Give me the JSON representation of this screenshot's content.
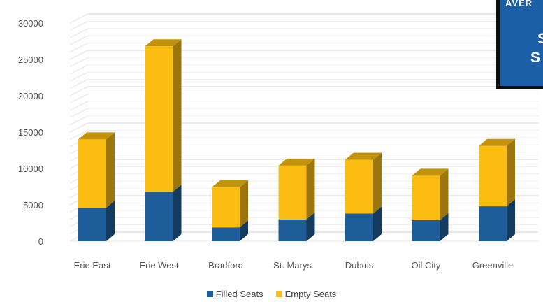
{
  "chart_data": {
    "type": "bar",
    "stacked": true,
    "three_d": true,
    "categories": [
      "Erie East",
      "Erie West",
      "Bradford",
      "St. Marys",
      "Dubois",
      "Oil City",
      "Greenville"
    ],
    "series": [
      {
        "name": "Filled Seats",
        "color": "#1f5d9a",
        "values": [
          4600,
          6800,
          1900,
          3000,
          3800,
          2900,
          4800
        ]
      },
      {
        "name": "Empty Seats",
        "color": "#fbbd12",
        "values": [
          9400,
          20000,
          5500,
          7400,
          7400,
          6100,
          8300
        ]
      }
    ],
    "ylim": [
      0,
      30000
    ],
    "yticks": [
      "0",
      "5000",
      "10000",
      "15000",
      "20000",
      "25000",
      "30000"
    ],
    "grid": true,
    "legend_position": "bottom"
  },
  "panel": {
    "top_text": "AVER",
    "line1": "S",
    "line2": "S I"
  }
}
